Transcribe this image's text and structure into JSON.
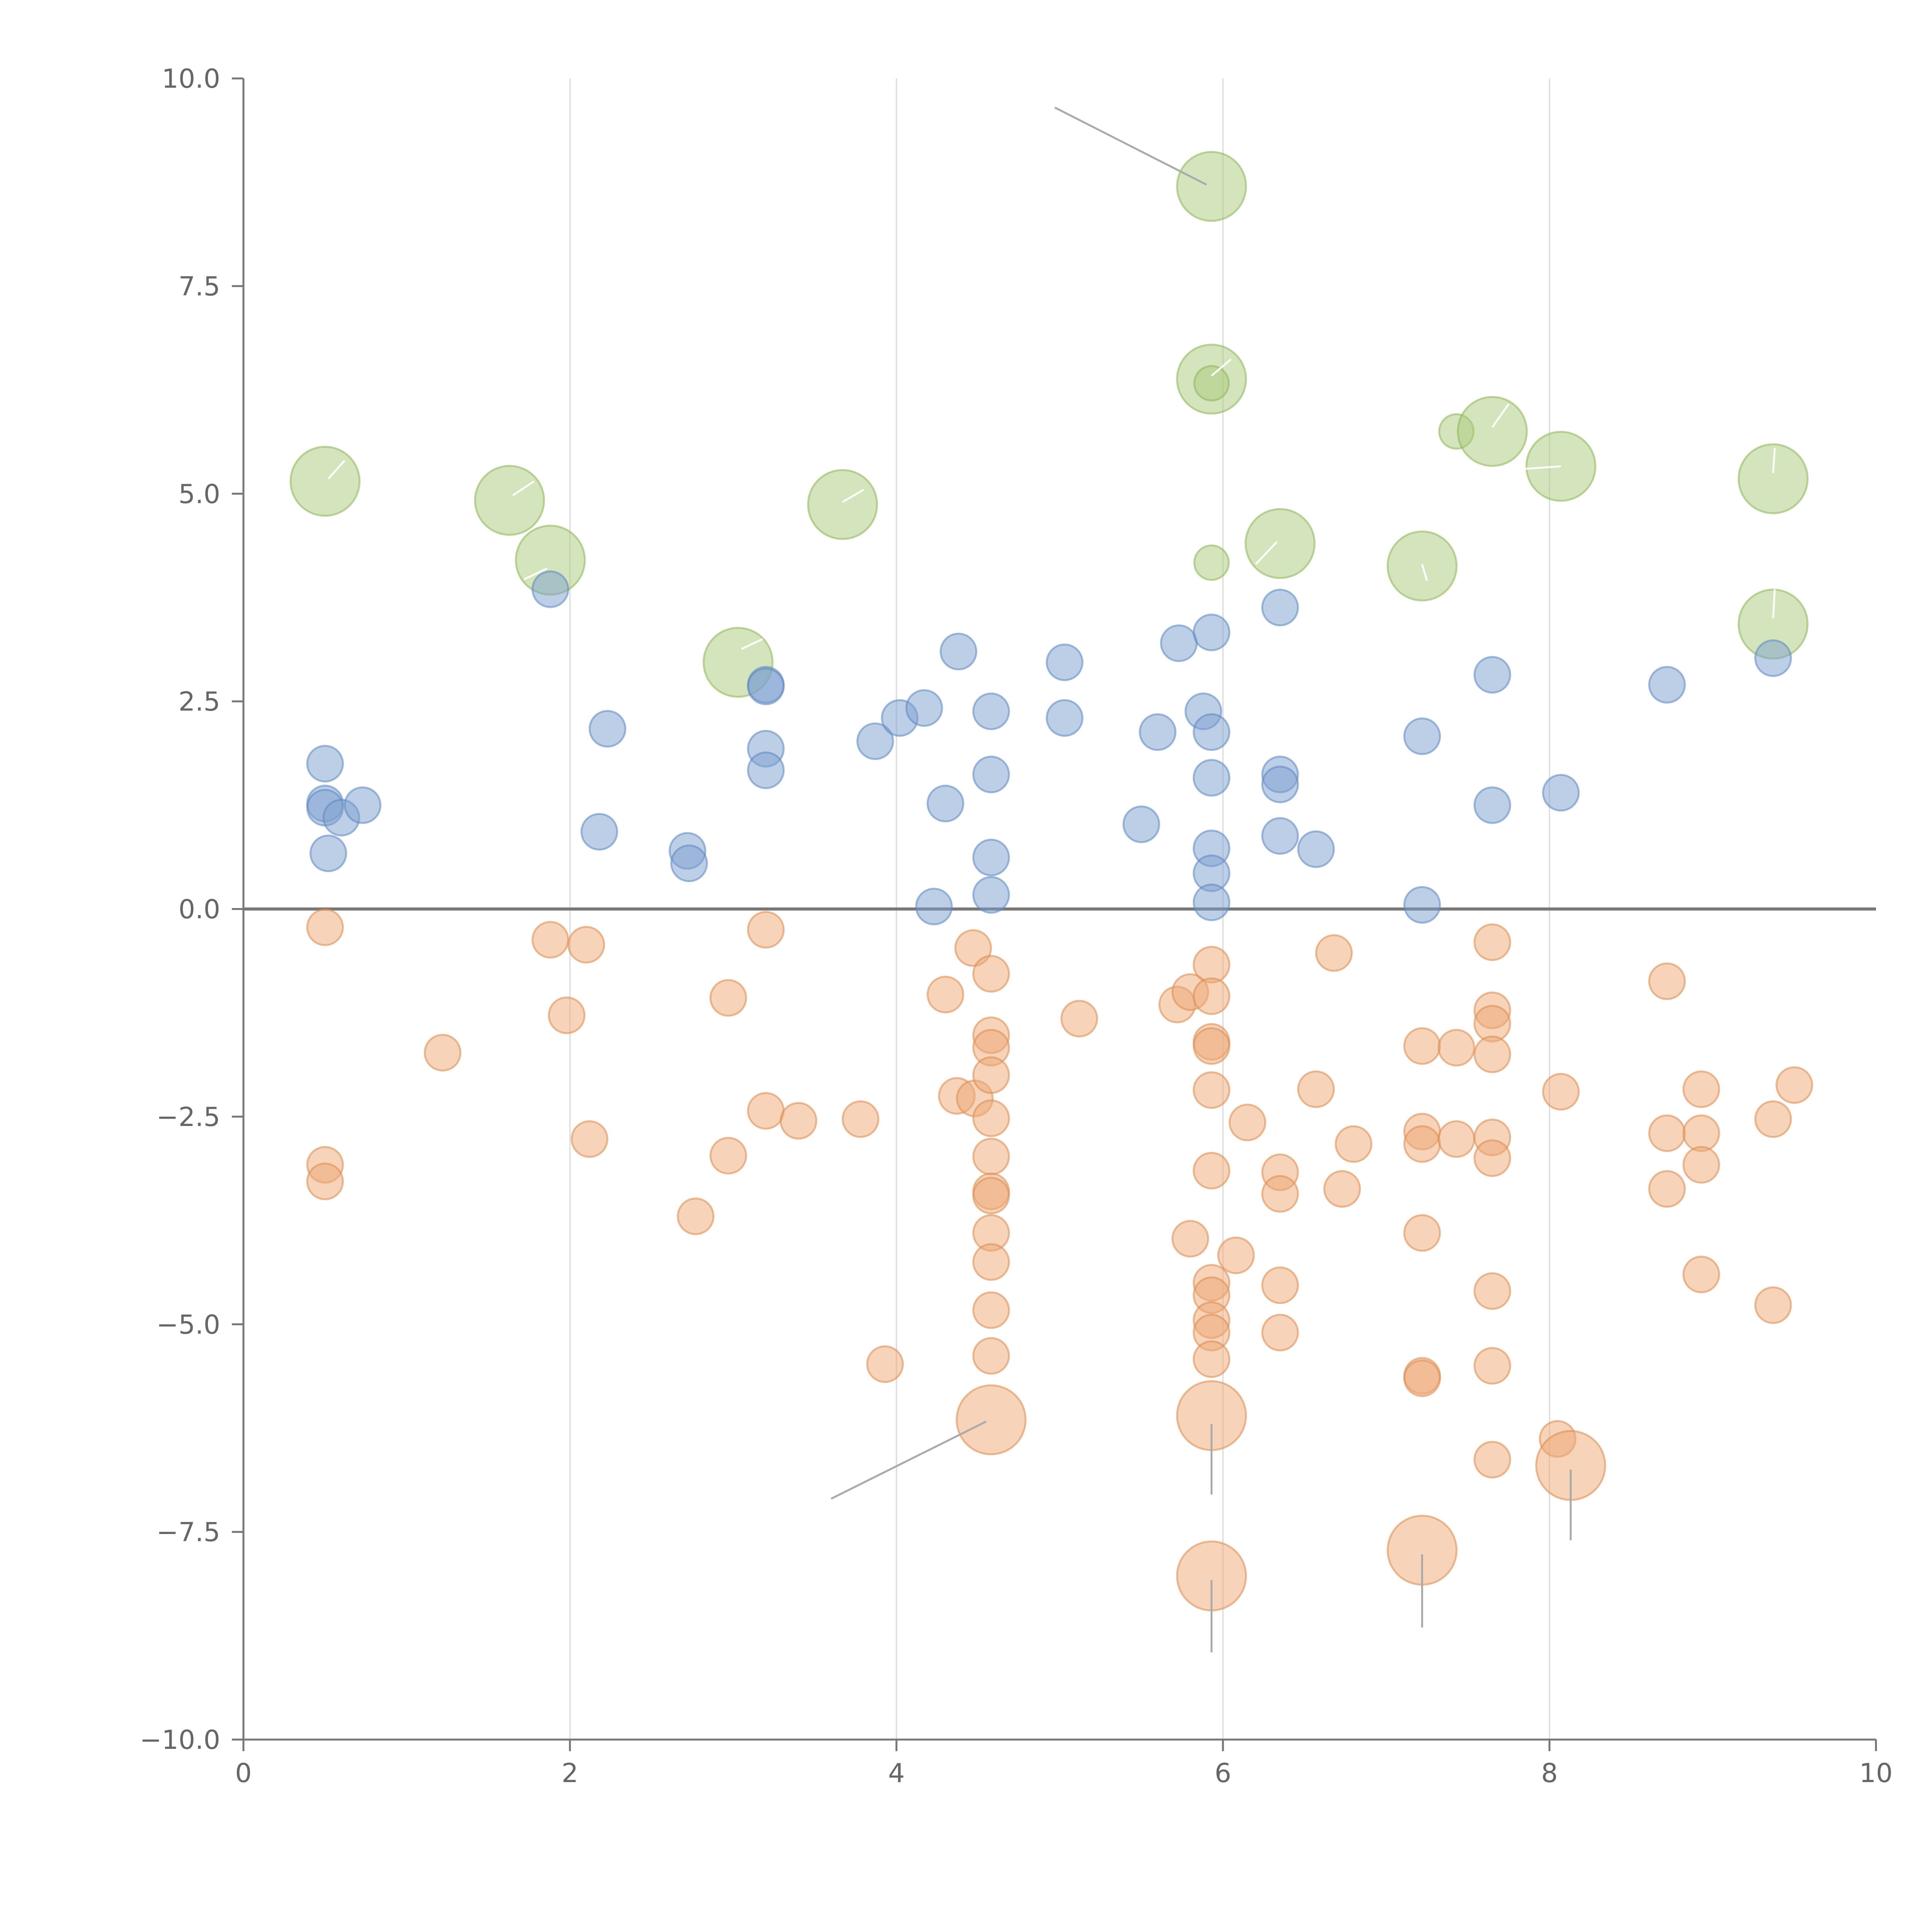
{
  "chart_data": {
    "type": "scatter",
    "title": "",
    "xlabel": "",
    "ylabel": "",
    "xlim": [
      0,
      10
    ],
    "ylim": [
      -10,
      10
    ],
    "xticks": [
      0,
      2,
      4,
      6,
      8,
      10
    ],
    "xtick_labels": [
      "0",
      "2",
      "4",
      "6",
      "8",
      "10"
    ],
    "yticks": [
      10,
      7.5,
      5,
      2.5,
      0,
      -2.5,
      -5,
      -7.5,
      -10
    ],
    "ytick_labels": [
      "10.0",
      "7.5",
      "5.0",
      "2.5",
      "0.0",
      "−2.5",
      "−5.0",
      "−7.5",
      "−10.0"
    ],
    "grid_x": true,
    "zero_line": true,
    "series": [
      {
        "name": "green",
        "color": "#a9c97a",
        "stroke": "#8fb35a",
        "points": [
          {
            "x": 0.5,
            "y": 5.15,
            "size": "large"
          },
          {
            "x": 1.63,
            "y": 4.92,
            "size": "large"
          },
          {
            "x": 1.88,
            "y": 4.2,
            "size": "large"
          },
          {
            "x": 3.03,
            "y": 2.97,
            "size": "large"
          },
          {
            "x": 3.67,
            "y": 4.87,
            "size": "large"
          },
          {
            "x": 5.93,
            "y": 8.7,
            "size": "large"
          },
          {
            "x": 5.93,
            "y": 6.38,
            "size": "large"
          },
          {
            "x": 5.93,
            "y": 6.33,
            "size": "small"
          },
          {
            "x": 5.93,
            "y": 4.17,
            "size": "small"
          },
          {
            "x": 6.35,
            "y": 4.4,
            "size": "large"
          },
          {
            "x": 7.22,
            "y": 4.13,
            "size": "large"
          },
          {
            "x": 7.43,
            "y": 5.75,
            "size": "small"
          },
          {
            "x": 7.65,
            "y": 5.75,
            "size": "large"
          },
          {
            "x": 8.07,
            "y": 5.33,
            "size": "large"
          },
          {
            "x": 9.37,
            "y": 5.18,
            "size": "large"
          },
          {
            "x": 9.37,
            "y": 3.43,
            "size": "large"
          }
        ]
      },
      {
        "name": "blue",
        "color": "#7c9fd0",
        "stroke": "#5f86bf",
        "points": [
          {
            "x": 0.5,
            "y": 1.75
          },
          {
            "x": 0.5,
            "y": 1.27
          },
          {
            "x": 0.5,
            "y": 1.22
          },
          {
            "x": 0.6,
            "y": 1.1
          },
          {
            "x": 0.73,
            "y": 1.25
          },
          {
            "x": 0.52,
            "y": 0.67
          },
          {
            "x": 1.88,
            "y": 3.85
          },
          {
            "x": 2.23,
            "y": 2.17
          },
          {
            "x": 2.18,
            "y": 0.93
          },
          {
            "x": 2.72,
            "y": 0.7
          },
          {
            "x": 2.73,
            "y": 0.55
          },
          {
            "x": 3.2,
            "y": 2.7
          },
          {
            "x": 3.2,
            "y": 2.68
          },
          {
            "x": 3.2,
            "y": 1.93
          },
          {
            "x": 3.2,
            "y": 1.67
          },
          {
            "x": 3.87,
            "y": 2.02
          },
          {
            "x": 4.02,
            "y": 2.3
          },
          {
            "x": 4.17,
            "y": 2.42
          },
          {
            "x": 4.38,
            "y": 3.1
          },
          {
            "x": 4.3,
            "y": 1.27
          },
          {
            "x": 4.23,
            "y": 0.03
          },
          {
            "x": 4.58,
            "y": 2.38
          },
          {
            "x": 4.58,
            "y": 1.62
          },
          {
            "x": 4.58,
            "y": 0.62
          },
          {
            "x": 4.58,
            "y": 0.17
          },
          {
            "x": 5.03,
            "y": 2.97
          },
          {
            "x": 5.03,
            "y": 2.3
          },
          {
            "x": 5.5,
            "y": 1.02
          },
          {
            "x": 5.6,
            "y": 2.13
          },
          {
            "x": 5.73,
            "y": 3.2
          },
          {
            "x": 5.88,
            "y": 2.38
          },
          {
            "x": 5.93,
            "y": 3.33
          },
          {
            "x": 5.93,
            "y": 2.13
          },
          {
            "x": 5.93,
            "y": 1.58
          },
          {
            "x": 5.93,
            "y": 0.73
          },
          {
            "x": 5.93,
            "y": 0.43
          },
          {
            "x": 5.93,
            "y": 0.08
          },
          {
            "x": 6.35,
            "y": 3.63
          },
          {
            "x": 6.35,
            "y": 1.62
          },
          {
            "x": 6.35,
            "y": 1.5
          },
          {
            "x": 6.35,
            "y": 0.88
          },
          {
            "x": 6.57,
            "y": 0.72
          },
          {
            "x": 7.22,
            "y": 2.08
          },
          {
            "x": 7.22,
            "y": 0.05
          },
          {
            "x": 7.65,
            "y": 2.82
          },
          {
            "x": 7.65,
            "y": 1.25
          },
          {
            "x": 8.07,
            "y": 1.4
          },
          {
            "x": 8.72,
            "y": 2.7
          },
          {
            "x": 9.37,
            "y": 3.02
          }
        ]
      },
      {
        "name": "orange",
        "color": "#eda873",
        "stroke": "#d98c52",
        "points": [
          {
            "x": 0.5,
            "y": -0.22
          },
          {
            "x": 0.5,
            "y": -3.08
          },
          {
            "x": 0.5,
            "y": -3.28
          },
          {
            "x": 1.22,
            "y": -1.73
          },
          {
            "x": 1.88,
            "y": -0.37
          },
          {
            "x": 2.1,
            "y": -0.43
          },
          {
            "x": 1.98,
            "y": -1.28
          },
          {
            "x": 2.12,
            "y": -2.77
          },
          {
            "x": 2.97,
            "y": -1.07
          },
          {
            "x": 2.97,
            "y": -2.97
          },
          {
            "x": 2.77,
            "y": -3.7
          },
          {
            "x": 3.2,
            "y": -0.25
          },
          {
            "x": 3.2,
            "y": -2.43
          },
          {
            "x": 3.4,
            "y": -2.55
          },
          {
            "x": 3.78,
            "y": -2.53
          },
          {
            "x": 3.93,
            "y": -5.48
          },
          {
            "x": 4.47,
            "y": -0.47
          },
          {
            "x": 4.3,
            "y": -1.03
          },
          {
            "x": 4.58,
            "y": -0.78
          },
          {
            "x": 4.37,
            "y": -2.25
          },
          {
            "x": 4.48,
            "y": -2.28
          },
          {
            "x": 4.58,
            "y": -1.52
          },
          {
            "x": 4.58,
            "y": -1.67
          },
          {
            "x": 4.58,
            "y": -2.0
          },
          {
            "x": 4.58,
            "y": -2.52
          },
          {
            "x": 4.58,
            "y": -2.98
          },
          {
            "x": 4.58,
            "y": -3.4
          },
          {
            "x": 4.58,
            "y": -3.45
          },
          {
            "x": 4.58,
            "y": -3.9
          },
          {
            "x": 4.58,
            "y": -4.25
          },
          {
            "x": 4.58,
            "y": -4.83
          },
          {
            "x": 4.58,
            "y": -5.38
          },
          {
            "x": 4.58,
            "y": -6.15,
            "size": "large"
          },
          {
            "x": 5.12,
            "y": -1.32
          },
          {
            "x": 5.72,
            "y": -1.15
          },
          {
            "x": 5.8,
            "y": -1.0
          },
          {
            "x": 5.93,
            "y": -0.67
          },
          {
            "x": 5.93,
            "y": -1.05
          },
          {
            "x": 5.93,
            "y": -1.6
          },
          {
            "x": 5.93,
            "y": -1.65
          },
          {
            "x": 5.93,
            "y": -2.18
          },
          {
            "x": 5.93,
            "y": -3.15
          },
          {
            "x": 5.8,
            "y": -3.97
          },
          {
            "x": 6.08,
            "y": -4.17
          },
          {
            "x": 6.15,
            "y": -2.57
          },
          {
            "x": 5.93,
            "y": -4.5
          },
          {
            "x": 5.93,
            "y": -4.65
          },
          {
            "x": 5.93,
            "y": -4.95
          },
          {
            "x": 5.93,
            "y": -5.1
          },
          {
            "x": 5.93,
            "y": -5.42
          },
          {
            "x": 5.93,
            "y": -6.1,
            "size": "large"
          },
          {
            "x": 5.93,
            "y": -8.03,
            "size": "large"
          },
          {
            "x": 6.35,
            "y": -3.17
          },
          {
            "x": 6.35,
            "y": -3.43
          },
          {
            "x": 6.35,
            "y": -4.53
          },
          {
            "x": 6.35,
            "y": -5.1
          },
          {
            "x": 6.57,
            "y": -2.17
          },
          {
            "x": 6.68,
            "y": -0.53
          },
          {
            "x": 6.73,
            "y": -3.37
          },
          {
            "x": 6.8,
            "y": -2.83
          },
          {
            "x": 7.22,
            "y": -1.65
          },
          {
            "x": 7.22,
            "y": -2.68
          },
          {
            "x": 7.22,
            "y": -2.83
          },
          {
            "x": 7.22,
            "y": -3.9
          },
          {
            "x": 7.22,
            "y": -5.62
          },
          {
            "x": 7.22,
            "y": -5.65
          },
          {
            "x": 7.22,
            "y": -7.72,
            "size": "large"
          },
          {
            "x": 7.43,
            "y": -1.67
          },
          {
            "x": 7.43,
            "y": -2.77
          },
          {
            "x": 7.65,
            "y": -0.4
          },
          {
            "x": 7.65,
            "y": -1.22
          },
          {
            "x": 7.65,
            "y": -1.38
          },
          {
            "x": 7.65,
            "y": -1.75
          },
          {
            "x": 7.65,
            "y": -2.75
          },
          {
            "x": 7.65,
            "y": -3.0
          },
          {
            "x": 7.65,
            "y": -4.6
          },
          {
            "x": 7.65,
            "y": -5.5
          },
          {
            "x": 7.65,
            "y": -6.63
          },
          {
            "x": 8.07,
            "y": -2.2
          },
          {
            "x": 8.05,
            "y": -6.38
          },
          {
            "x": 8.13,
            "y": -6.7,
            "size": "large"
          },
          {
            "x": 8.72,
            "y": -0.87
          },
          {
            "x": 8.72,
            "y": -2.7
          },
          {
            "x": 8.72,
            "y": -3.37
          },
          {
            "x": 8.93,
            "y": -2.17
          },
          {
            "x": 8.93,
            "y": -2.7
          },
          {
            "x": 8.93,
            "y": -3.08
          },
          {
            "x": 8.93,
            "y": -4.4
          },
          {
            "x": 9.37,
            "y": -2.53
          },
          {
            "x": 9.37,
            "y": -4.77
          },
          {
            "x": 9.5,
            "y": -2.12
          }
        ]
      }
    ],
    "annotations": [
      {
        "from": [
          4.97,
          9.65
        ],
        "to": [
          5.9,
          8.72
        ],
        "color": "#aaaaaa"
      },
      {
        "from": [
          3.6,
          -7.1
        ],
        "to": [
          4.55,
          -6.17
        ],
        "color": "#aaaaaa"
      },
      {
        "from": [
          5.93,
          -6.2
        ],
        "to": [
          5.93,
          -7.05
        ],
        "color": "#aaaaaa"
      },
      {
        "from": [
          5.93,
          -8.08
        ],
        "to": [
          5.93,
          -8.95
        ],
        "color": "#aaaaaa"
      },
      {
        "from": [
          7.22,
          -7.77
        ],
        "to": [
          7.22,
          -8.65
        ],
        "color": "#aaaaaa"
      },
      {
        "from": [
          8.13,
          -6.75
        ],
        "to": [
          8.13,
          -7.6
        ],
        "color": "#aaaaaa"
      },
      {
        "from": [
          0.52,
          5.18
        ],
        "to": [
          0.62,
          5.4
        ],
        "color": "#ffffff"
      },
      {
        "from": [
          1.65,
          4.98
        ],
        "to": [
          1.78,
          5.15
        ],
        "color": "#ffffff"
      },
      {
        "from": [
          1.72,
          3.97
        ],
        "to": [
          1.86,
          4.1
        ],
        "color": "#ffffff"
      },
      {
        "from": [
          3.05,
          3.13
        ],
        "to": [
          3.18,
          3.25
        ],
        "color": "#ffffff"
      },
      {
        "from": [
          3.67,
          4.9
        ],
        "to": [
          3.8,
          5.05
        ],
        "color": "#ffffff"
      },
      {
        "from": [
          5.93,
          6.42
        ],
        "to": [
          6.05,
          6.62
        ],
        "color": "#ffffff"
      },
      {
        "from": [
          6.2,
          4.15
        ],
        "to": [
          6.33,
          4.42
        ],
        "color": "#ffffff"
      },
      {
        "from": [
          7.22,
          4.15
        ],
        "to": [
          7.25,
          3.95
        ],
        "color": "#ffffff"
      },
      {
        "from": [
          7.65,
          5.8
        ],
        "to": [
          7.75,
          6.08
        ],
        "color": "#ffffff"
      },
      {
        "from": [
          7.85,
          5.3
        ],
        "to": [
          8.07,
          5.33
        ],
        "color": "#ffffff"
      },
      {
        "from": [
          9.37,
          5.25
        ],
        "to": [
          9.38,
          5.55
        ],
        "color": "#ffffff"
      },
      {
        "from": [
          9.37,
          3.5
        ],
        "to": [
          9.38,
          3.85
        ],
        "color": "#ffffff"
      }
    ]
  }
}
